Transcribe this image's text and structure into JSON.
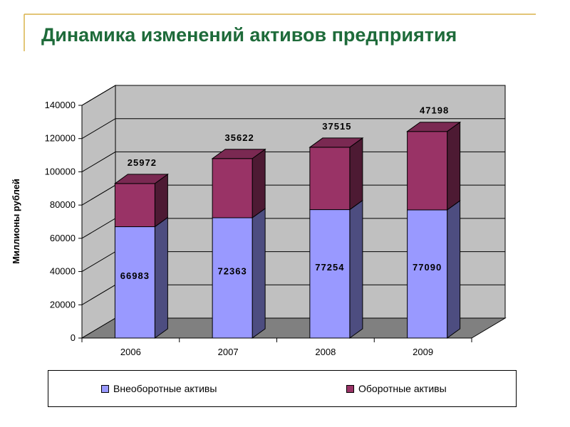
{
  "title": "Динамика изменений активов предприятия",
  "colors": {
    "title": "#1e6b3a",
    "accent_line": "#d9b24a",
    "wall": "#c0c0c0",
    "floor": "#808080",
    "series1_front": "#9999ff",
    "series1_side": "#4d4d80",
    "series1_top": "#7a7acc",
    "series2_front": "#993366",
    "series2_side": "#4d1a33",
    "series2_top": "#7a2952"
  },
  "chart_data": {
    "type": "bar",
    "stacked": true,
    "three_d": true,
    "categories": [
      "2006",
      "2007",
      "2008",
      "2009"
    ],
    "series": [
      {
        "name": "Внеоборотные активы",
        "values": [
          66983,
          72363,
          77254,
          77090
        ]
      },
      {
        "name": "Оборотные активы",
        "values": [
          25972,
          35622,
          37515,
          47198
        ]
      }
    ],
    "ylabel": "Миллионы рублей",
    "xlabel": "",
    "ylim": [
      0,
      140000
    ],
    "yticks": [
      "0",
      "20000",
      "40000",
      "60000",
      "80000",
      "100000",
      "120000",
      "140000"
    ],
    "grid": true,
    "legend_position": "bottom"
  }
}
